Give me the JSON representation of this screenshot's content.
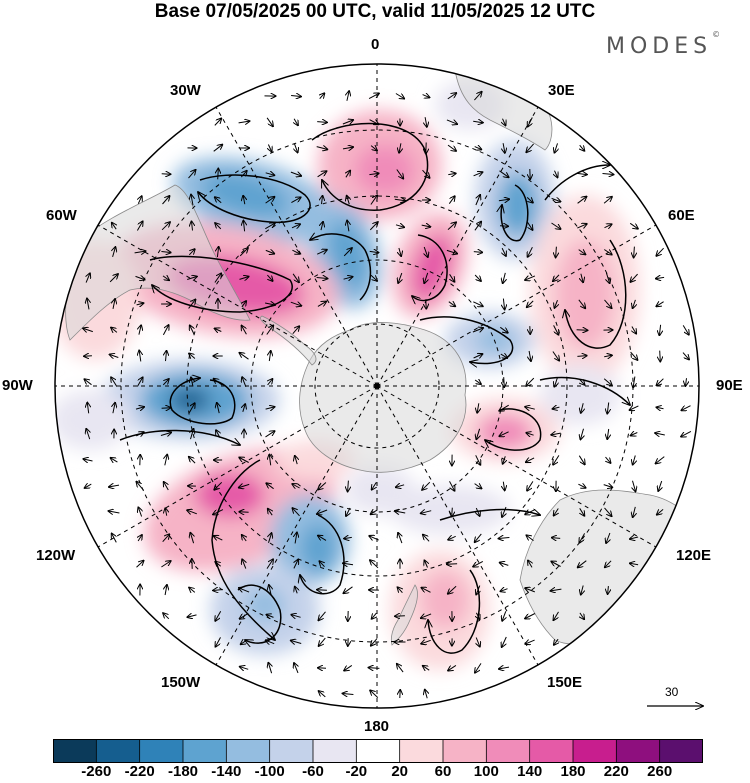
{
  "title": "Base 07/05/2025 00 UTC, valid 11/05/2025 12 UTC",
  "logo_text": "MODES",
  "logo_mark": "©",
  "longitude_labels": {
    "lon_0": "0",
    "lon_30e": "30E",
    "lon_60e": "60E",
    "lon_90e": "90E",
    "lon_120e": "120E",
    "lon_150e": "150E",
    "lon_180": "180",
    "lon_150w": "150W",
    "lon_120w": "120W",
    "lon_90w": "90W",
    "lon_60w": "60W",
    "lon_30w": "30W"
  },
  "reference_vector_label": "30",
  "colorbar": {
    "levels": [
      "-260",
      "-220",
      "-180",
      "-140",
      "-100",
      "-60",
      "-20",
      "20",
      "60",
      "100",
      "140",
      "180",
      "220",
      "260"
    ],
    "colors": [
      "#0b3a5a",
      "#155e8f",
      "#2f82b8",
      "#5ea3d0",
      "#94bde0",
      "#c4d2ea",
      "#e8e6f2",
      "#ffffff",
      "#fbdadd",
      "#f6b3c6",
      "#f08cb9",
      "#e55aa7",
      "#c81e8e",
      "#8e0f7e",
      "#5b0f6e"
    ]
  },
  "map": {
    "projection": "south-polar-stereographic",
    "land_color": "#eeeeee",
    "anomaly_centers": [
      {
        "sign": "positive",
        "value": 150,
        "lon": 0
      },
      {
        "sign": "negative",
        "value": -170,
        "lon": -35
      },
      {
        "sign": "negative",
        "value": -160,
        "lon": 28
      },
      {
        "sign": "positive",
        "value": 170,
        "lon": -65
      },
      {
        "sign": "positive",
        "value": 160,
        "lon": 18
      },
      {
        "sign": "positive",
        "value": 100,
        "lon": 58
      },
      {
        "sign": "negative",
        "value": -90,
        "lon": 55
      },
      {
        "sign": "negative",
        "value": -190,
        "lon": -92
      },
      {
        "sign": "positive",
        "value": 130,
        "lon": 105
      },
      {
        "sign": "positive",
        "value": 150,
        "lon": -125
      },
      {
        "sign": "negative",
        "value": -110,
        "lon": -162
      },
      {
        "sign": "negative",
        "value": -80,
        "lon": -150
      },
      {
        "sign": "positive",
        "value": 80,
        "lon": 168
      }
    ]
  }
}
